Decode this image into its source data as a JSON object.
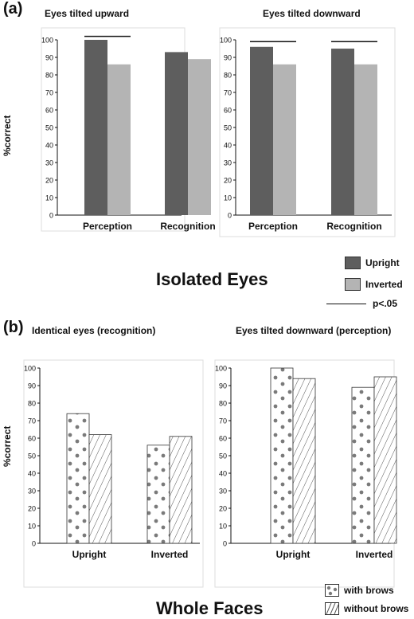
{
  "panel_a": {
    "label": "(a)",
    "section_title": "Isolated Eyes",
    "legend": {
      "items": [
        {
          "label": "Upright",
          "color": "#5e5e5e"
        },
        {
          "label": "Inverted",
          "color": "#b4b4b4"
        }
      ],
      "sig_label": "p<.05"
    }
  },
  "panel_b": {
    "label": "(b)",
    "section_title": "Whole Faces",
    "legend": {
      "items": [
        {
          "label": "with brows",
          "pattern": "dots"
        },
        {
          "label": "without brows",
          "pattern": "stripes"
        }
      ]
    }
  },
  "colors": {
    "upright": "#5e5e5e",
    "inverted": "#b4b4b4",
    "dots": "#7a7a7a",
    "stripes": "#555555"
  },
  "chart_data": [
    {
      "type": "bar",
      "title": "Eyes tilted upward",
      "ylabel": "%correct",
      "ylim": [
        0,
        100
      ],
      "yticks": [
        0,
        10,
        20,
        30,
        40,
        50,
        60,
        70,
        80,
        90,
        100
      ],
      "categories": [
        "Perception",
        "Recognition"
      ],
      "series": [
        {
          "name": "Upright",
          "values": [
            100,
            93
          ],
          "fill": "upright"
        },
        {
          "name": "Inverted",
          "values": [
            86,
            89
          ],
          "fill": "inverted"
        }
      ],
      "significance": [
        {
          "category": 0,
          "y": 102
        }
      ]
    },
    {
      "type": "bar",
      "title": "Eyes tilted downward",
      "ylabel": "",
      "ylim": [
        0,
        100
      ],
      "yticks": [
        0,
        10,
        20,
        30,
        40,
        50,
        60,
        70,
        80,
        90,
        100
      ],
      "categories": [
        "Perception",
        "Recognition"
      ],
      "series": [
        {
          "name": "Upright",
          "values": [
            96,
            95
          ],
          "fill": "upright"
        },
        {
          "name": "Inverted",
          "values": [
            86,
            86
          ],
          "fill": "inverted"
        }
      ],
      "significance": [
        {
          "category": 0,
          "y": 99
        },
        {
          "category": 1,
          "y": 99
        }
      ]
    },
    {
      "type": "bar",
      "title": "Identical eyes (recognition)",
      "ylabel": "%correct",
      "ylim": [
        0,
        100
      ],
      "yticks": [
        0,
        10,
        20,
        30,
        40,
        50,
        60,
        70,
        80,
        90,
        100
      ],
      "categories": [
        "Upright",
        "Inverted"
      ],
      "series": [
        {
          "name": "with brows",
          "values": [
            74,
            56
          ],
          "fill": "dots"
        },
        {
          "name": "without brows",
          "values": [
            62,
            61
          ],
          "fill": "stripes"
        }
      ],
      "significance": []
    },
    {
      "type": "bar",
      "title": "Eyes tilted downward (perception)",
      "ylabel": "",
      "ylim": [
        0,
        100
      ],
      "yticks": [
        0,
        10,
        20,
        30,
        40,
        50,
        60,
        70,
        80,
        90,
        100
      ],
      "categories": [
        "Upright",
        "Inverted"
      ],
      "series": [
        {
          "name": "with brows",
          "values": [
            100,
            89
          ],
          "fill": "dots"
        },
        {
          "name": "without brows",
          "values": [
            94,
            95
          ],
          "fill": "stripes"
        }
      ],
      "significance": []
    }
  ]
}
